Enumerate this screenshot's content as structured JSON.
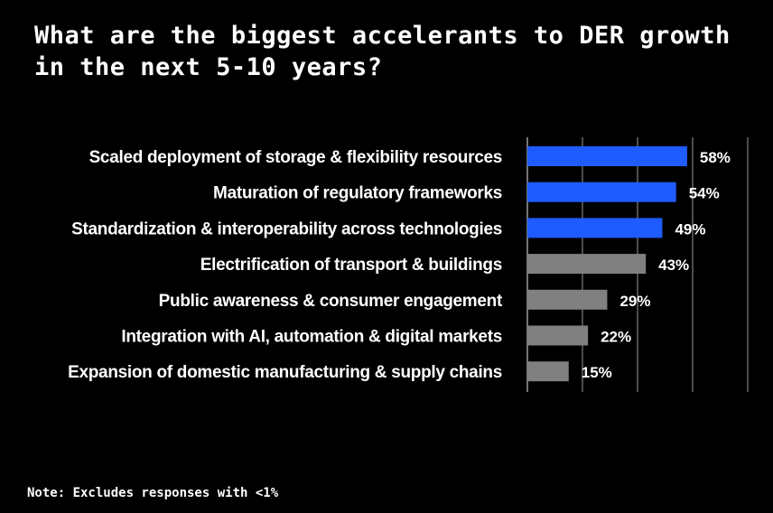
{
  "chart_data": {
    "type": "bar",
    "orientation": "horizontal",
    "title": "What are the biggest accelerants to DER growth in the next 5-10 years?",
    "categories": [
      "Scaled deployment of storage & flexibility resources",
      "Maturation of regulatory frameworks",
      "Standardization & interoperability across technologies",
      "Electrification of transport & buildings",
      "Public awareness & consumer engagement",
      "Integration with AI, automation & digital markets",
      "Expansion of domestic manufacturing & supply chains"
    ],
    "values": [
      58,
      54,
      49,
      43,
      29,
      22,
      15
    ],
    "value_labels": [
      "58%",
      "54%",
      "49%",
      "43%",
      "29%",
      "22%",
      "15%"
    ],
    "highlighted": [
      true,
      true,
      true,
      false,
      false,
      false,
      false
    ],
    "xlim": [
      0,
      80
    ],
    "grid": true,
    "xlabel": "",
    "ylabel": ""
  },
  "colors": {
    "background": "#000000",
    "highlight": "#1f5cff",
    "muted": "#808080",
    "gridline": "#9a9a9a",
    "text": "#ffffff"
  },
  "note": "Note: Excludes responses with <1%"
}
